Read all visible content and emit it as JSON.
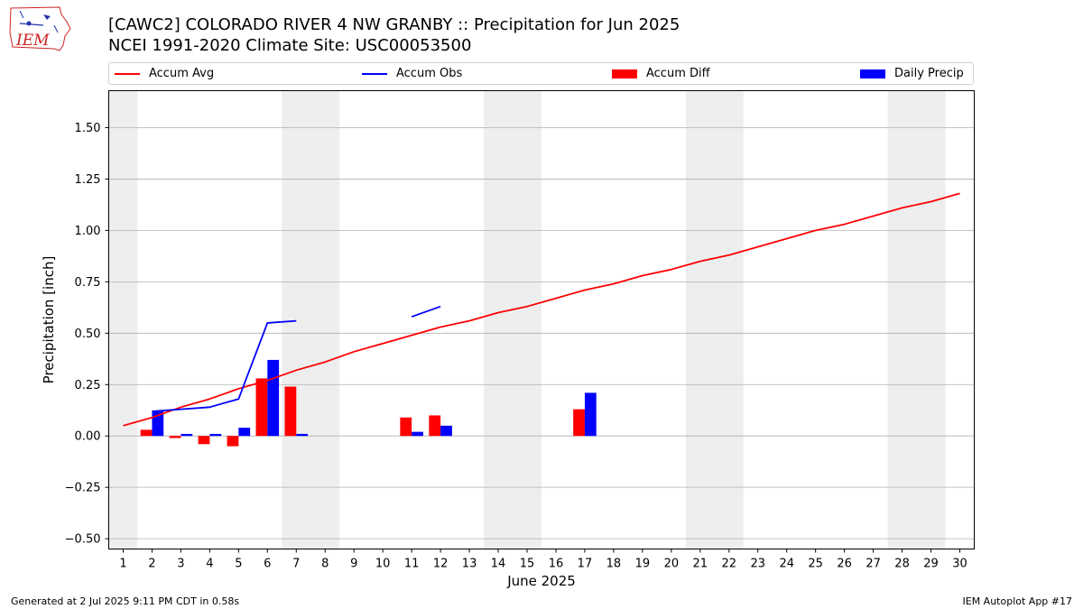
{
  "header": {
    "title_line1": "[CAWC2] COLORADO RIVER 4 NW GRANBY :: Precipitation for Jun 2025",
    "title_line2": "NCEI 1991-2020 Climate Site: USC00053500",
    "logo_text": "IEM"
  },
  "footer": {
    "generated": "Generated at 2 Jul 2025 9:11 PM CDT in 0.58s",
    "app": "IEM Autoplot App #17"
  },
  "colors": {
    "avg": "#ff0000",
    "obs": "#0000ff",
    "diff": "#ff0000",
    "daily": "#0000ff",
    "weekend_band": "#eeeeee",
    "grid": "#b0b0b0"
  },
  "chart_data": {
    "type": "bar",
    "xlabel": "June 2025",
    "ylabel": "Precipitation [inch]",
    "xlim": [
      0.5,
      30.5
    ],
    "ylim": [
      -0.55,
      1.68
    ],
    "grid": true,
    "legend_position": "top",
    "x": [
      1,
      2,
      3,
      4,
      5,
      6,
      7,
      8,
      9,
      10,
      11,
      12,
      13,
      14,
      15,
      16,
      17,
      18,
      19,
      20,
      21,
      22,
      23,
      24,
      25,
      26,
      27,
      28,
      29,
      30
    ],
    "x_tick_labels": [
      "1",
      "2",
      "3",
      "4",
      "5",
      "6",
      "7",
      "8",
      "9",
      "10",
      "11",
      "12",
      "13",
      "14",
      "15",
      "16",
      "17",
      "18",
      "19",
      "20",
      "21",
      "22",
      "23",
      "24",
      "25",
      "26",
      "27",
      "28",
      "29",
      "30"
    ],
    "y_ticks": [
      -0.5,
      -0.25,
      0.0,
      0.25,
      0.5,
      0.75,
      1.0,
      1.25,
      1.5
    ],
    "y_tick_labels": [
      "−0.50",
      "−0.25",
      "0.00",
      "0.25",
      "0.50",
      "0.75",
      "1.00",
      "1.25",
      "1.50"
    ],
    "weekend_bands": [
      [
        0.5,
        1.5
      ],
      [
        6.5,
        8.5
      ],
      [
        13.5,
        15.5
      ],
      [
        20.5,
        22.5
      ],
      [
        27.5,
        29.5
      ]
    ],
    "series": [
      {
        "name": "Accum Avg",
        "kind": "line",
        "values": [
          0.05,
          0.09,
          0.14,
          0.18,
          0.23,
          0.27,
          0.32,
          0.36,
          0.41,
          0.45,
          0.49,
          0.53,
          0.56,
          0.6,
          0.63,
          0.67,
          0.71,
          0.74,
          0.78,
          0.81,
          0.85,
          0.88,
          0.92,
          0.96,
          1.0,
          1.03,
          1.07,
          1.11,
          1.14,
          1.18
        ]
      },
      {
        "name": "Accum Obs",
        "kind": "line",
        "values": [
          null,
          0.12,
          0.13,
          0.14,
          0.18,
          0.55,
          0.56,
          null,
          null,
          null,
          0.58,
          0.63,
          null,
          null,
          null,
          null,
          null,
          null,
          null,
          null,
          null,
          null,
          null,
          null,
          null,
          null,
          null,
          null,
          null,
          null
        ]
      },
      {
        "name": "Accum Diff",
        "kind": "bar",
        "values": [
          null,
          0.03,
          -0.01,
          -0.04,
          -0.05,
          0.28,
          0.24,
          null,
          null,
          null,
          0.09,
          0.1,
          null,
          null,
          null,
          null,
          0.13,
          null,
          null,
          null,
          null,
          null,
          null,
          null,
          null,
          null,
          null,
          null,
          null,
          null
        ]
      },
      {
        "name": "Daily Precip",
        "kind": "bar",
        "values": [
          null,
          0.12,
          0.01,
          0.01,
          0.04,
          0.37,
          0.01,
          null,
          null,
          null,
          0.02,
          0.05,
          null,
          null,
          null,
          null,
          0.21,
          null,
          null,
          null,
          null,
          null,
          null,
          null,
          null,
          null,
          null,
          null,
          null,
          null
        ]
      }
    ]
  }
}
